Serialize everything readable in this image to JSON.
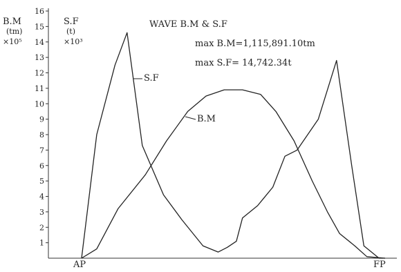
{
  "chart_data": {
    "type": "line",
    "title": "WAVE  B.M & S.F",
    "annotations": {
      "max_bm": "max B.M=1,115,891.10tm",
      "max_sf": "max S.F= 14,742.34t"
    },
    "ylabel_left": {
      "line1": "B.M",
      "line2": "(tm)",
      "line3": "×10⁵"
    },
    "ylabel_right": {
      "line1": "S.F",
      "line2": "(t)",
      "line3": "×10³"
    },
    "x_labels": {
      "start": "AP",
      "end": "FP"
    },
    "ylim": [
      0,
      16
    ],
    "y_ticks": [
      "1",
      "2",
      "3",
      "4",
      "5",
      "6",
      "7",
      "8",
      "9",
      "10",
      "11",
      "12",
      "13",
      "14",
      "15",
      "16"
    ],
    "series": [
      {
        "name": "S.F",
        "x": [
          0,
          0.05,
          0.11,
          0.15,
          0.2,
          0.27,
          0.33,
          0.4,
          0.45,
          0.48,
          0.51,
          0.53,
          0.58,
          0.63,
          0.67,
          0.71,
          0.78,
          0.84,
          0.89,
          0.93,
          0.98,
          1.0
        ],
        "values": [
          0,
          8.0,
          12.5,
          14.6,
          7.3,
          4.1,
          2.5,
          0.8,
          0.4,
          0.7,
          1.1,
          2.6,
          3.4,
          4.6,
          6.6,
          7.0,
          9.0,
          12.8,
          6.0,
          0.8,
          0,
          0
        ]
      },
      {
        "name": "B.M",
        "x": [
          0,
          0.05,
          0.12,
          0.21,
          0.28,
          0.35,
          0.41,
          0.47,
          0.53,
          0.59,
          0.64,
          0.7,
          0.76,
          0.81,
          0.85,
          0.9,
          0.94,
          1.0
        ],
        "values": [
          0,
          0.6,
          3.2,
          5.4,
          7.6,
          9.5,
          10.5,
          10.9,
          10.9,
          10.6,
          9.5,
          7.6,
          5.0,
          3.0,
          1.6,
          0.8,
          0.1,
          0
        ]
      }
    ],
    "series_labels": {
      "sf": "S.F",
      "bm": "B.M"
    },
    "grid": false
  }
}
